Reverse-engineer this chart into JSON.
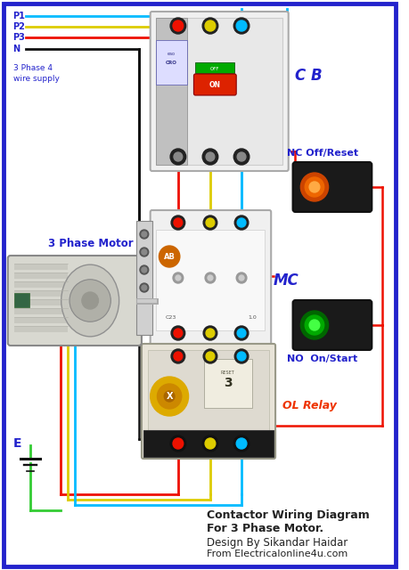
{
  "bg_color": "#ffffff",
  "title_line1": "Contactor Wiring Diagram",
  "title_line2": "For 3 Phase Motor.",
  "subtitle_line2": "Design By Sikandar Haidar",
  "subtitle_line3": "From Electricalonline4u.com",
  "supply_labels": [
    "P1",
    "P2",
    "P3",
    "N"
  ],
  "supply_colors": [
    "#00bbff",
    "#ddcc00",
    "#ee1100",
    "#111111"
  ],
  "supply_text_color": "#2222cc",
  "wire_colors": {
    "blue": "#00bbff",
    "yellow": "#ddcc00",
    "red": "#ee1100",
    "black": "#111111",
    "green": "#33cc33"
  },
  "component_labels": {
    "cb": "C B",
    "mc": "MC",
    "ol": "OL Relay",
    "nc": "NC Off/Reset",
    "no": "NO  On/Start",
    "motor": "3 Phase Motor",
    "supply": "3 Phase 4\nwire supply",
    "earth": "E"
  },
  "label_color_red": "#ee3300",
  "label_color_blue": "#2222cc",
  "fig_bg": "#ffffff",
  "border_color": "#2222cc"
}
